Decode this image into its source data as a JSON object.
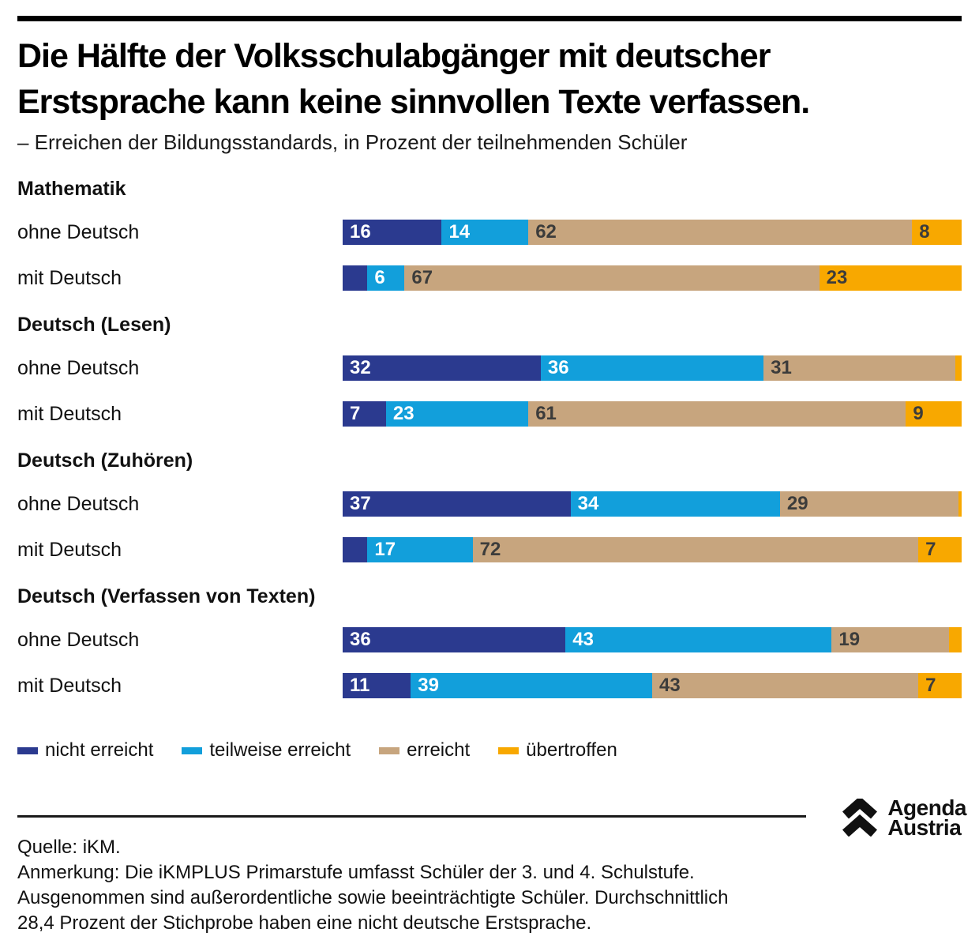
{
  "header": {
    "title_lines": [
      "Die Hälfte der Volksschulabgänger mit deutscher",
      "Erstsprache kann keine sinnvollen Texte verfassen."
    ],
    "subtitle": "– Erreichen der Bildungsstandards, in Prozent der teilnehmenden Schüler"
  },
  "chart_data": {
    "type": "bar",
    "variant": "horizontal-stacked-100-percent",
    "unit": "Prozent der teilnehmenden Schüler",
    "series_names": [
      "nicht erreicht",
      "teilweise erreicht",
      "erreicht",
      "übertroffen"
    ],
    "colors": [
      "#2B3A8F",
      "#129FDB",
      "#C7A57E",
      "#F8A800"
    ],
    "value_label_colors": [
      "#FFFFFF",
      "#FFFFFF",
      "#3C3C3B",
      "#3C3C3B"
    ],
    "xlim": [
      0,
      100
    ],
    "grid": false,
    "legend_position": "bottom",
    "legend": [
      "nicht erreicht",
      "teilweise erreicht",
      "erreicht",
      "übertroffen"
    ],
    "groups": [
      {
        "heading": "Mathematik",
        "rows": [
          {
            "label": "ohne Deutsch",
            "segments": [
              {
                "v": 16,
                "t": "16"
              },
              {
                "v": 14,
                "t": "14"
              },
              {
                "v": 62,
                "t": "62"
              },
              {
                "v": 8,
                "t": "8"
              }
            ]
          },
          {
            "label": "mit Deutsch",
            "segments": [
              {
                "v": 4,
                "t": ""
              },
              {
                "v": 6,
                "t": "6"
              },
              {
                "v": 67,
                "t": "67"
              },
              {
                "v": 23,
                "t": "23"
              }
            ]
          }
        ]
      },
      {
        "heading": "Deutsch (Lesen)",
        "rows": [
          {
            "label": "ohne Deutsch",
            "segments": [
              {
                "v": 32,
                "t": "32"
              },
              {
                "v": 36,
                "t": "36"
              },
              {
                "v": 31,
                "t": "31"
              },
              {
                "v": 1,
                "t": ""
              }
            ]
          },
          {
            "label": "mit Deutsch",
            "segments": [
              {
                "v": 7,
                "t": "7"
              },
              {
                "v": 23,
                "t": "23"
              },
              {
                "v": 61,
                "t": "61"
              },
              {
                "v": 9,
                "t": "9"
              }
            ]
          }
        ]
      },
      {
        "heading": "Deutsch (Zuhören)",
        "rows": [
          {
            "label": "ohne Deutsch",
            "segments": [
              {
                "v": 37,
                "t": "37"
              },
              {
                "v": 34,
                "t": "34"
              },
              {
                "v": 29,
                "t": "29"
              },
              {
                "v": 0.5,
                "t": ""
              }
            ]
          },
          {
            "label": "mit Deutsch",
            "segments": [
              {
                "v": 4,
                "t": ""
              },
              {
                "v": 17,
                "t": "17"
              },
              {
                "v": 72,
                "t": "72"
              },
              {
                "v": 7,
                "t": "7"
              }
            ]
          }
        ]
      },
      {
        "heading": "Deutsch (Verfassen von Texten)",
        "rows": [
          {
            "label": "ohne Deutsch",
            "segments": [
              {
                "v": 36,
                "t": "36"
              },
              {
                "v": 43,
                "t": "43"
              },
              {
                "v": 19,
                "t": "19"
              },
              {
                "v": 2,
                "t": ""
              }
            ]
          },
          {
            "label": "mit Deutsch",
            "segments": [
              {
                "v": 11,
                "t": "11"
              },
              {
                "v": 39,
                "t": "39"
              },
              {
                "v": 43,
                "t": "43"
              },
              {
                "v": 7,
                "t": "7"
              }
            ]
          }
        ]
      }
    ]
  },
  "footer": {
    "source": "Quelle: iKM.",
    "note_lines": [
      "Anmerkung: Die iKMPLUS Primarstufe umfasst Schüler der 3. und 4. Schulstufe.",
      "Ausgenommen sind außerordentliche sowie beeinträchtigte Schüler. Durchschnittlich",
      "28,4 Prozent der Stichprobe haben eine nicht deutsche Erstsprache."
    ],
    "logo": {
      "line1": "Agenda",
      "line2": "Austria"
    }
  }
}
